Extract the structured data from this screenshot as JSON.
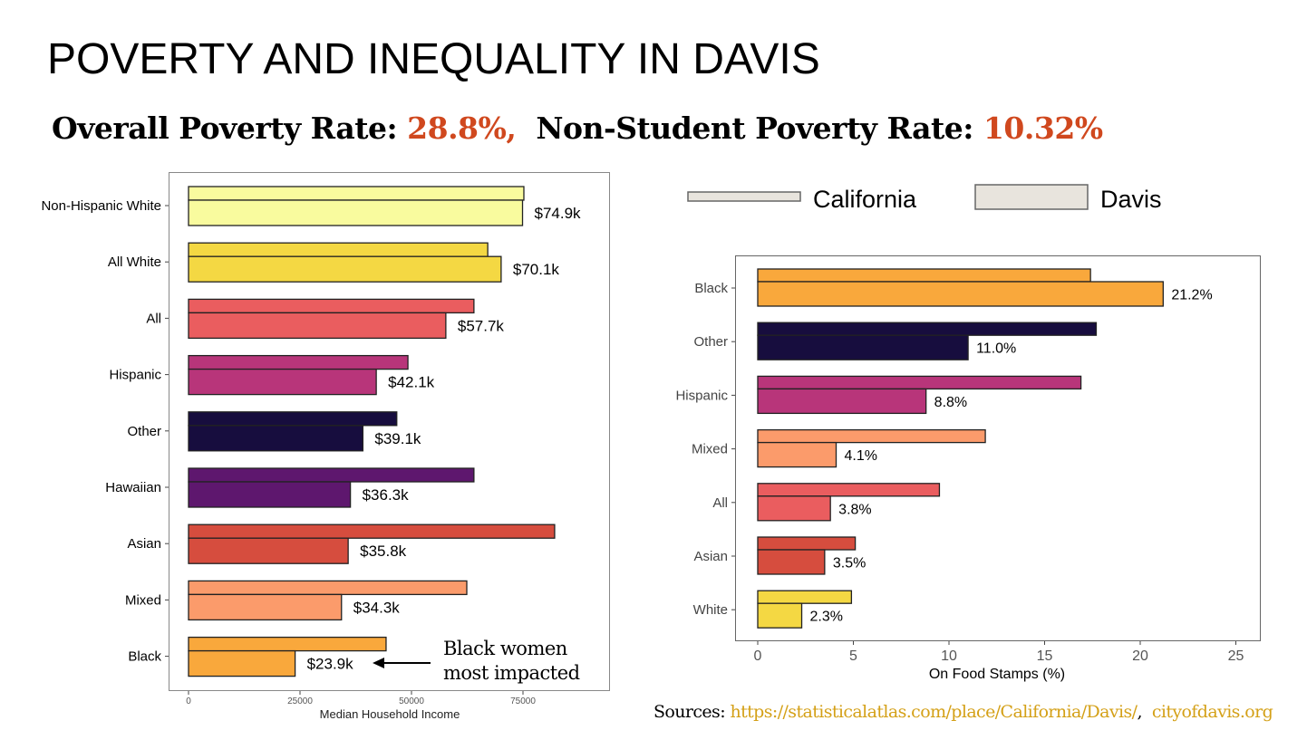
{
  "title": "POVERTY AND INEQUALITY IN DAVIS",
  "subtitle": {
    "overall_label": "Overall Poverty Rate:",
    "overall_value": "28.8%,",
    "nonstudent_label": "Non-Student Poverty Rate:",
    "nonstudent_value": "10.32%"
  },
  "colors": {
    "accent": "#d0481e",
    "link": "#d4a017"
  },
  "annotation": {
    "line1": "Black women",
    "line2": "most impacted"
  },
  "sources": {
    "label": "Sources:",
    "link1": "https://statisticalatlas.com/place/California/Davis/",
    "separator": ",",
    "link2": "cityofdavis.org"
  },
  "chart_data": [
    {
      "type": "bar",
      "orientation": "horizontal",
      "title": "",
      "xlabel": "Median Household Income",
      "ylabel": "",
      "xlim": [
        0,
        95000
      ],
      "xticks": [
        "0",
        "25000",
        "50000",
        "75000"
      ],
      "xtick_values": [
        0,
        25000,
        50000,
        75000
      ],
      "grid": false,
      "categories": [
        "Non-Hispanic White",
        "All White",
        "All",
        "Hispanic",
        "Other",
        "Hawaiian",
        "Asian",
        "Mixed",
        "Black"
      ],
      "colors": [
        "#f9fb9e",
        "#f4d843",
        "#ea5d5f",
        "#b8357a",
        "#170d3e",
        "#5e176e",
        "#d64d3e",
        "#fb9b6b",
        "#f9a83c"
      ],
      "series": [
        {
          "name": "California",
          "values": [
            75200,
            67100,
            64000,
            49200,
            46700,
            64000,
            82100,
            62400,
            44300
          ]
        },
        {
          "name": "Davis",
          "values": [
            74900,
            70100,
            57700,
            42100,
            39100,
            36300,
            35800,
            34300,
            23900
          ],
          "labels": [
            "$74.9k",
            "$70.1k",
            "$57.7k",
            "$42.1k",
            "$39.1k",
            "$36.3k",
            "$35.8k",
            "$34.3k",
            "$23.9k"
          ]
        }
      ]
    },
    {
      "type": "bar",
      "orientation": "horizontal",
      "title": "",
      "xlabel": "On Food Stamps (%)",
      "ylabel": "",
      "xlim": [
        -1.2,
        26.4
      ],
      "xticks": [
        "0",
        "5",
        "10",
        "15",
        "20",
        "25"
      ],
      "xtick_values": [
        0,
        5,
        10,
        15,
        20,
        25
      ],
      "grid": false,
      "legend": {
        "position": "top",
        "entries": [
          "California",
          "Davis"
        ],
        "fill": "#e8e4dd"
      },
      "categories": [
        "Black",
        "Other",
        "Hispanic",
        "Mixed",
        "All",
        "Asian",
        "White"
      ],
      "colors": [
        "#f9a83c",
        "#170d3e",
        "#b8357a",
        "#fb9b6b",
        "#ea5d5f",
        "#d64d3e",
        "#f4d843"
      ],
      "series": [
        {
          "name": "California",
          "values": [
            17.4,
            17.7,
            16.9,
            11.9,
            9.5,
            5.1,
            4.9
          ]
        },
        {
          "name": "Davis",
          "values": [
            21.2,
            11.0,
            8.8,
            4.1,
            3.8,
            3.5,
            2.3
          ],
          "labels": [
            "21.2%",
            "11.0%",
            "8.8%",
            "4.1%",
            "3.8%",
            "3.5%",
            "2.3%"
          ]
        }
      ]
    }
  ]
}
